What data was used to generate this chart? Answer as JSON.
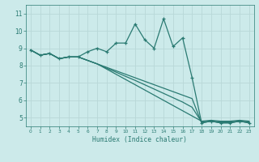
{
  "xlabel": "Humidex (Indice chaleur)",
  "xlim": [
    -0.5,
    23.5
  ],
  "ylim": [
    4.5,
    11.5
  ],
  "yticks": [
    5,
    6,
    7,
    8,
    9,
    10,
    11
  ],
  "xticks": [
    0,
    1,
    2,
    3,
    4,
    5,
    6,
    7,
    8,
    9,
    10,
    11,
    12,
    13,
    14,
    15,
    16,
    17,
    18,
    19,
    20,
    21,
    22,
    23
  ],
  "bg_color": "#cceaea",
  "grid_color": "#b8d8d8",
  "line_color": "#2a7a72",
  "lines": [
    [
      8.9,
      8.6,
      8.7,
      8.4,
      8.5,
      8.5,
      8.8,
      9.0,
      8.8,
      9.3,
      9.3,
      10.4,
      9.5,
      9.0,
      10.7,
      9.1,
      9.6,
      7.3,
      4.7,
      4.8,
      4.7,
      4.7,
      4.8,
      4.7
    ],
    [
      8.9,
      8.6,
      8.7,
      8.4,
      8.5,
      8.5,
      8.3,
      8.1,
      7.9,
      7.7,
      7.5,
      7.3,
      7.1,
      6.9,
      6.7,
      6.5,
      6.3,
      6.1,
      4.7,
      4.8,
      4.7,
      4.7,
      4.8,
      4.7
    ],
    [
      8.9,
      8.6,
      8.7,
      8.4,
      8.5,
      8.5,
      8.3,
      8.1,
      7.85,
      7.62,
      7.38,
      7.15,
      6.9,
      6.65,
      6.4,
      6.15,
      5.9,
      5.6,
      4.75,
      4.8,
      4.75,
      4.75,
      4.8,
      4.75
    ],
    [
      8.9,
      8.6,
      8.7,
      8.4,
      8.5,
      8.5,
      8.3,
      8.1,
      7.8,
      7.5,
      7.2,
      6.9,
      6.6,
      6.3,
      6.0,
      5.7,
      5.4,
      5.1,
      4.8,
      4.85,
      4.8,
      4.8,
      4.85,
      4.8
    ]
  ]
}
